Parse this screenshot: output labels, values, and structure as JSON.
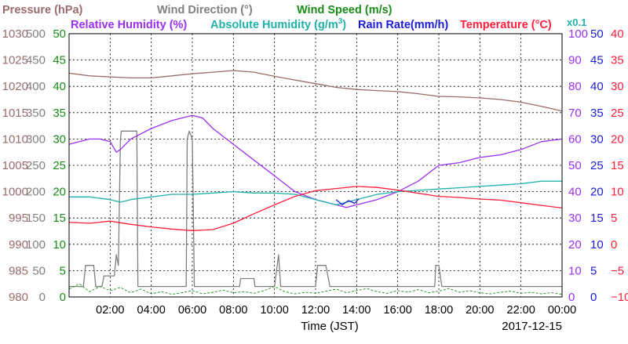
{
  "legend": {
    "pressure": {
      "label": "Pressure (hPa)",
      "color": "#9a6b6b"
    },
    "wind_direction": {
      "label": "Wind Direction (°)",
      "color": "#808080"
    },
    "wind_speed": {
      "label": "Wind Speed (m/s)",
      "color": "#1a8c1a"
    },
    "relative_humidity": {
      "label": "Relative Humidity (%)",
      "color": "#9b30f0"
    },
    "absolute_humidity": {
      "label": "Absolute Humidity (g/m",
      "sup": "3",
      "close": ")",
      "color": "#20b2aa"
    },
    "rain_rate": {
      "label": "Rain Rate(mm/h)",
      "color": "#1c1cd8"
    },
    "temperature": {
      "label": "Temperature (°C)",
      "color": "#ff1e3c"
    },
    "rain_scale_note": {
      "label": "x0.1",
      "color": "#20b2aa"
    }
  },
  "footer": {
    "x_axis_label": "Time (JST)",
    "date": "2017-12-15"
  },
  "chart_data": {
    "type": "line",
    "grid": true,
    "x_axis": {
      "label": "Time (JST)",
      "range_hours": [
        0,
        24
      ],
      "tick_labels": [
        "02:00",
        "04:00",
        "06:00",
        "08:00",
        "10:00",
        "12:00",
        "14:00",
        "16:00",
        "18:00",
        "20:00",
        "22:00",
        "00:00"
      ]
    },
    "y_axes": [
      {
        "id": "pressure",
        "unit": "hPa",
        "range": [
          980,
          1030
        ],
        "ticks": [
          "980",
          "985",
          "990",
          "995",
          "1000",
          "1005",
          "1010",
          "1015",
          "1020",
          "1025",
          "1030"
        ],
        "color": "#9a6b6b",
        "side": "left"
      },
      {
        "id": "wind_direction",
        "unit": "°",
        "range": [
          0,
          500
        ],
        "ticks": [
          "0",
          "50",
          "100",
          "150",
          "200",
          "250",
          "300",
          "350",
          "400",
          "450",
          "500"
        ],
        "color": "#808080",
        "side": "left"
      },
      {
        "id": "wind_speed",
        "unit": "m/s",
        "range": [
          0,
          50
        ],
        "ticks": [
          "0",
          "5",
          "10",
          "15",
          "20",
          "25",
          "30",
          "35",
          "40",
          "45",
          "50"
        ],
        "color": "#1a8c1a",
        "side": "left"
      },
      {
        "id": "humidity",
        "unit": "% / g/m3",
        "range": [
          0,
          100
        ],
        "ticks": [
          "0",
          "10",
          "20",
          "30",
          "40",
          "50",
          "60",
          "70",
          "80",
          "90",
          "100"
        ],
        "color": "#9b30f0",
        "side": "right"
      },
      {
        "id": "rain_rate",
        "unit": "mm/h",
        "range": [
          0,
          50
        ],
        "ticks": [
          "0",
          "5",
          "10",
          "15",
          "20",
          "25",
          "30",
          "35",
          "40",
          "45",
          "50"
        ],
        "color": "#1c1cd8",
        "side": "right"
      },
      {
        "id": "temperature",
        "unit": "°C",
        "range": [
          -10,
          40
        ],
        "ticks": [
          "−10",
          "−5",
          "0",
          "5",
          "10",
          "15",
          "20",
          "25",
          "30",
          "35",
          "40"
        ],
        "color": "#ff1e3c",
        "side": "right"
      }
    ],
    "series": [
      {
        "name": "Pressure (hPa)",
        "axis": "pressure",
        "color": "#9a6b6b",
        "x": [
          0,
          1,
          2,
          3,
          4,
          5,
          6,
          7,
          8,
          9,
          10,
          11,
          12,
          13,
          14,
          15,
          16,
          17,
          18,
          19,
          20,
          21,
          22,
          23,
          24
        ],
        "y": [
          1022.5,
          1022.0,
          1021.8,
          1021.6,
          1021.6,
          1022.0,
          1022.4,
          1022.7,
          1023.0,
          1022.7,
          1021.9,
          1021.2,
          1020.5,
          1019.8,
          1019.4,
          1019.2,
          1019.0,
          1018.6,
          1018.1,
          1018.0,
          1017.8,
          1017.5,
          1017.0,
          1016.2,
          1015.3
        ]
      },
      {
        "name": "Wind Direction (°)",
        "axis": "wind_direction",
        "color": "#808080",
        "x": [
          0,
          0.7,
          0.8,
          1.2,
          1.3,
          1.6,
          1.7,
          2.2,
          2.3,
          2.4,
          2.5,
          2.55,
          3.3,
          3.35,
          4.3,
          4.35,
          5.7,
          5.75,
          5.85,
          6.0,
          6.1,
          8.3,
          8.35,
          9.0,
          9.05,
          10.0,
          10.2,
          10.3,
          10.5,
          10.7,
          11.0,
          12.0,
          12.1,
          12.5,
          12.7,
          13.0,
          17.8,
          17.85,
          18.0,
          18.15,
          24
        ],
        "y": [
          20,
          20,
          60,
          60,
          20,
          20,
          40,
          40,
          80,
          60,
          300,
          315,
          315,
          20,
          20,
          20,
          20,
          300,
          315,
          300,
          20,
          20,
          35,
          35,
          20,
          20,
          80,
          20,
          20,
          20,
          20,
          20,
          60,
          60,
          20,
          20,
          20,
          60,
          60,
          20,
          20
        ]
      },
      {
        "name": "Wind Speed (m/s)",
        "axis": "wind_speed",
        "color": "#1a8c1a",
        "x": [
          0,
          0.5,
          1,
          1.5,
          2,
          2.5,
          3,
          3.5,
          4,
          4.5,
          5,
          5.5,
          6,
          6.5,
          7,
          7.5,
          8,
          8.5,
          9,
          9.5,
          10,
          10.5,
          11,
          11.5,
          12,
          12.5,
          13,
          13.5,
          14,
          14.5,
          15,
          15.5,
          16,
          16.5,
          17,
          17.5,
          18,
          18.5,
          19,
          19.5,
          20,
          20.5,
          21,
          21.5,
          22,
          22.5,
          23,
          23.5,
          24
        ],
        "y": [
          1.5,
          2.5,
          1,
          2,
          1.2,
          1.8,
          0.8,
          1.5,
          0.6,
          1.0,
          0.5,
          0.8,
          1.2,
          0.6,
          0.9,
          1.3,
          0.8,
          1.0,
          0.7,
          1.2,
          2.0,
          1.0,
          0.6,
          0.9,
          0.7,
          1.1,
          1.5,
          0.8,
          1.2,
          1.6,
          1.0,
          0.7,
          1.2,
          0.9,
          1.4,
          0.8,
          1.1,
          1.6,
          0.9,
          1.2,
          0.8,
          0.6,
          0.9,
          1.1,
          0.7,
          0.9,
          0.6,
          0.8,
          0.5
        ]
      },
      {
        "name": "Relative Humidity (%)",
        "axis": "humidity",
        "color": "#9b30f0",
        "x": [
          0,
          1,
          1.5,
          2,
          2.3,
          2.5,
          3,
          4,
          5,
          5.5,
          6,
          6.5,
          7,
          8,
          9,
          10,
          11,
          12,
          12.5,
          13,
          13.5,
          14,
          15,
          16,
          17,
          18,
          19,
          20,
          21,
          22,
          23,
          24
        ],
        "y": [
          58,
          60,
          60,
          59,
          55,
          56,
          60,
          64,
          67,
          68,
          69,
          68,
          64,
          58,
          52,
          46,
          40,
          37,
          36,
          35,
          34,
          35,
          37,
          40,
          44,
          50,
          51,
          53,
          54,
          56,
          59,
          60
        ]
      },
      {
        "name": "Absolute Humidity (g/m3)",
        "axis": "humidity",
        "color": "#20b2aa",
        "x": [
          0,
          1,
          2,
          2.5,
          3,
          4,
          5,
          6,
          7,
          8,
          9,
          10,
          11,
          12,
          13,
          14,
          15,
          16,
          17,
          18,
          19,
          20,
          21,
          22,
          23,
          24
        ],
        "y": [
          38,
          38,
          37,
          36,
          37,
          38,
          39,
          39,
          39.5,
          40,
          39.5,
          39.5,
          39,
          37,
          35,
          37,
          39,
          40,
          40.5,
          41,
          41.5,
          42,
          42.5,
          43,
          44,
          44
        ]
      },
      {
        "name": "Rain Rate(mm/h)",
        "axis": "rain_rate",
        "color": "#1c1cd8",
        "x": [
          13.0,
          13.3,
          13.6,
          13.9,
          14.1
        ],
        "y": [
          18.5,
          17.5,
          18.3,
          17.8,
          18.6
        ]
      },
      {
        "name": "Temperature (°C)",
        "axis": "temperature",
        "color": "#ff1e3c",
        "x": [
          0,
          1,
          2,
          3,
          4,
          5,
          6,
          7,
          8,
          9,
          10,
          11,
          12,
          13,
          14,
          15,
          16,
          17,
          18,
          19,
          20,
          21,
          22,
          23,
          24
        ],
        "y": [
          4.2,
          4.0,
          4.4,
          3.8,
          3.3,
          2.9,
          2.6,
          2.8,
          4.0,
          5.8,
          7.5,
          9.1,
          10.2,
          10.6,
          11.0,
          10.8,
          10.3,
          9.7,
          9.1,
          8.9,
          8.6,
          8.4,
          7.9,
          7.4,
          6.9
        ]
      }
    ]
  }
}
